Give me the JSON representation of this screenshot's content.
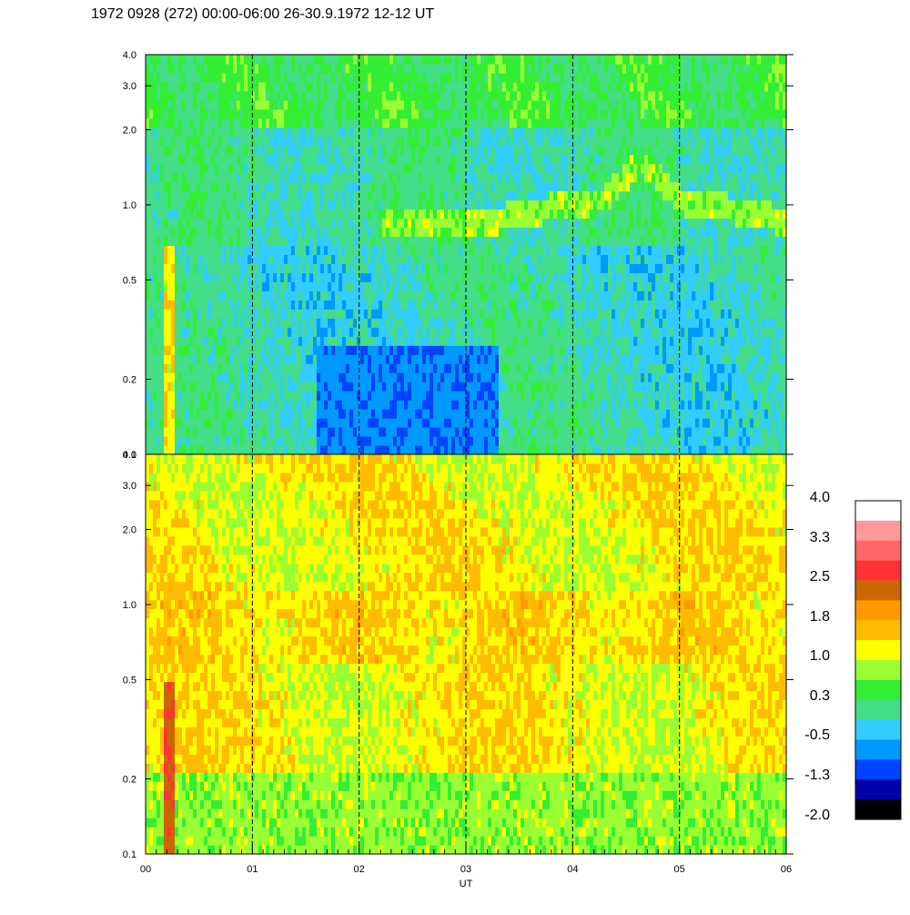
{
  "title": "1972 0928 (272) 00:00-06:00 26-30.9.1972  12-12 UT",
  "chart_data": {
    "type": "heatmap",
    "title": "1972 0928 (272) 00:00-06:00 26-30.9.1972  12-12 UT",
    "xlabel": "UT",
    "x_tick_labels": [
      "00",
      "01",
      "02",
      "03",
      "04",
      "05",
      "06"
    ],
    "xlim": [
      0,
      6
    ],
    "y_scale": "log",
    "ylim": [
      0.1,
      4.0
    ],
    "y_ticks": [
      0.1,
      0.2,
      0.5,
      1.0,
      2.0,
      3.0,
      4.0
    ],
    "y_tick_labels": [
      "0.1",
      "0.2",
      "0.5",
      "1.0",
      "2.0",
      "3.0",
      "4.0"
    ],
    "vertical_dashed_lines_at": [
      1,
      2,
      3,
      4,
      5
    ],
    "panels": [
      {
        "name": "upper",
        "dominant_levels": "mostly -0.5 to 1.0",
        "features": [
          {
            "desc": "yellow band",
            "x_start": 2.2,
            "x_end": 6.0,
            "y": 1.0
          },
          {
            "desc": "orange streak",
            "x_start": 0.18,
            "x_end": 0.27,
            "y_range": [
              0.1,
              0.7
            ]
          },
          {
            "desc": "cyan region",
            "x_start": 1.6,
            "x_end": 3.2,
            "y_range": [
              0.1,
              0.25
            ]
          }
        ]
      },
      {
        "name": "lower",
        "dominant_levels": "mostly 1.0 to 1.8",
        "features": [
          {
            "desc": "red streak",
            "x_start": 0.18,
            "x_end": 0.27,
            "y_range": [
              0.1,
              0.5
            ]
          },
          {
            "desc": "yellow-green low region",
            "x_start": 0.0,
            "x_end": 6.0,
            "y_range": [
              0.1,
              0.2
            ]
          }
        ]
      }
    ],
    "colorbar": {
      "labels": [
        "4.0",
        "3.3",
        "2.5",
        "1.8",
        "1.0",
        "0.3",
        "-0.5",
        "-1.3",
        "-2.0"
      ],
      "colors": [
        "#ffffff",
        "#ff9999",
        "#ff6666",
        "#ff3333",
        "#cc6600",
        "#ff9900",
        "#ffbb00",
        "#ffff00",
        "#99ff33",
        "#33ee33",
        "#44dd88",
        "#33ccff",
        "#0099ff",
        "#0044ff",
        "#0000aa",
        "#000000"
      ]
    }
  }
}
